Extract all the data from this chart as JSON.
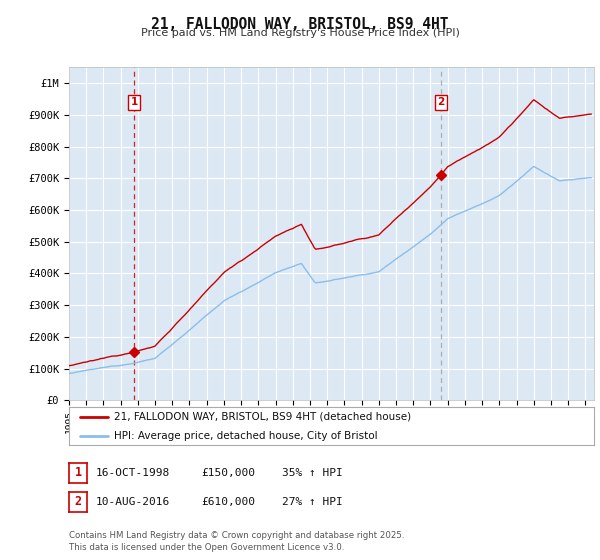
{
  "title": "21, FALLODON WAY, BRISTOL, BS9 4HT",
  "subtitle": "Price paid vs. HM Land Registry's House Price Index (HPI)",
  "legend_line1": "21, FALLODON WAY, BRISTOL, BS9 4HT (detached house)",
  "legend_line2": "HPI: Average price, detached house, City of Bristol",
  "footnote": "Contains HM Land Registry data © Crown copyright and database right 2025.\nThis data is licensed under the Open Government Licence v3.0.",
  "purchase1_date": 1998.79,
  "purchase1_price": 150000,
  "purchase1_label": "1",
  "purchase2_date": 2016.61,
  "purchase2_price": 610000,
  "purchase2_label": "2",
  "ylim": [
    0,
    1050000
  ],
  "xlim_start": 1995.0,
  "xlim_end": 2025.5,
  "background_color": "#dce9f5",
  "grid_color": "#ffffff",
  "hpi_line_color": "#8bbee8",
  "property_line_color": "#cc0000",
  "vline1_color": "#cc0000",
  "vline2_color": "#999999",
  "marker_color": "#cc0000",
  "fig_bg": "#ffffff",
  "yticks": [
    0,
    100000,
    200000,
    300000,
    400000,
    500000,
    600000,
    700000,
    800000,
    900000,
    1000000
  ],
  "ytick_labels": [
    "£0",
    "£100K",
    "£200K",
    "£300K",
    "£400K",
    "£500K",
    "£600K",
    "£700K",
    "£800K",
    "£900K",
    "£1M"
  ],
  "xticks": [
    1995,
    1996,
    1997,
    1998,
    1999,
    2000,
    2001,
    2002,
    2003,
    2004,
    2005,
    2006,
    2007,
    2008,
    2009,
    2010,
    2011,
    2012,
    2013,
    2014,
    2015,
    2016,
    2017,
    2018,
    2019,
    2020,
    2021,
    2022,
    2023,
    2024,
    2025
  ],
  "info1_date": "16-OCT-1998",
  "info1_price": "£150,000",
  "info1_hpi": "35% ↑ HPI",
  "info2_date": "10-AUG-2016",
  "info2_price": "£610,000",
  "info2_hpi": "27% ↑ HPI"
}
